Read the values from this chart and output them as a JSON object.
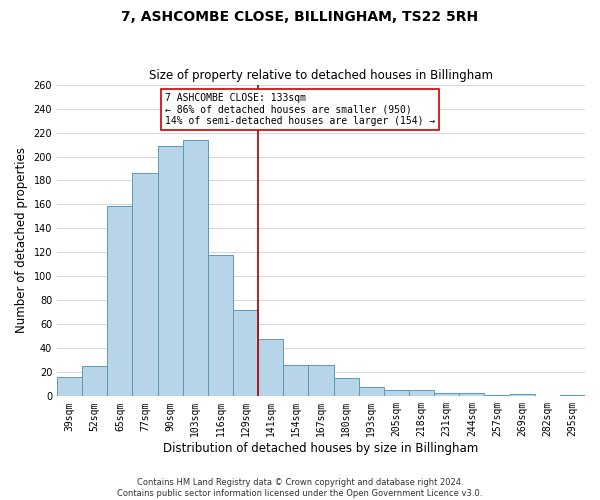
{
  "title": "7, ASHCOMBE CLOSE, BILLINGHAM, TS22 5RH",
  "subtitle": "Size of property relative to detached houses in Billingham",
  "xlabel": "Distribution of detached houses by size in Billingham",
  "ylabel": "Number of detached properties",
  "bar_color": "#b8d4e8",
  "bar_edge_color": "#5a9aba",
  "grid_color": "#d0d0d0",
  "categories": [
    "39sqm",
    "52sqm",
    "65sqm",
    "77sqm",
    "90sqm",
    "103sqm",
    "116sqm",
    "129sqm",
    "141sqm",
    "154sqm",
    "167sqm",
    "180sqm",
    "193sqm",
    "205sqm",
    "218sqm",
    "231sqm",
    "244sqm",
    "257sqm",
    "269sqm",
    "282sqm",
    "295sqm"
  ],
  "values": [
    16,
    25,
    159,
    186,
    209,
    214,
    118,
    72,
    48,
    26,
    26,
    15,
    8,
    5,
    5,
    3,
    3,
    1,
    2,
    0,
    1
  ],
  "ylim": [
    0,
    260
  ],
  "yticks": [
    0,
    20,
    40,
    60,
    80,
    100,
    120,
    140,
    160,
    180,
    200,
    220,
    240,
    260
  ],
  "property_line_x": 7.5,
  "property_line_color": "#aa0000",
  "annotation_title": "7 ASHCOMBE CLOSE: 133sqm",
  "annotation_line1": "← 86% of detached houses are smaller (950)",
  "annotation_line2": "14% of semi-detached houses are larger (154) →",
  "annotation_box_color": "#ffffff",
  "annotation_box_edge": "#cc0000",
  "footer_line1": "Contains HM Land Registry data © Crown copyright and database right 2024.",
  "footer_line2": "Contains public sector information licensed under the Open Government Licence v3.0.",
  "background_color": "#ffffff",
  "title_fontsize": 10,
  "subtitle_fontsize": 8.5,
  "xlabel_fontsize": 8.5,
  "ylabel_fontsize": 8.5,
  "tick_fontsize": 7,
  "annotation_fontsize": 7,
  "footer_fontsize": 6
}
